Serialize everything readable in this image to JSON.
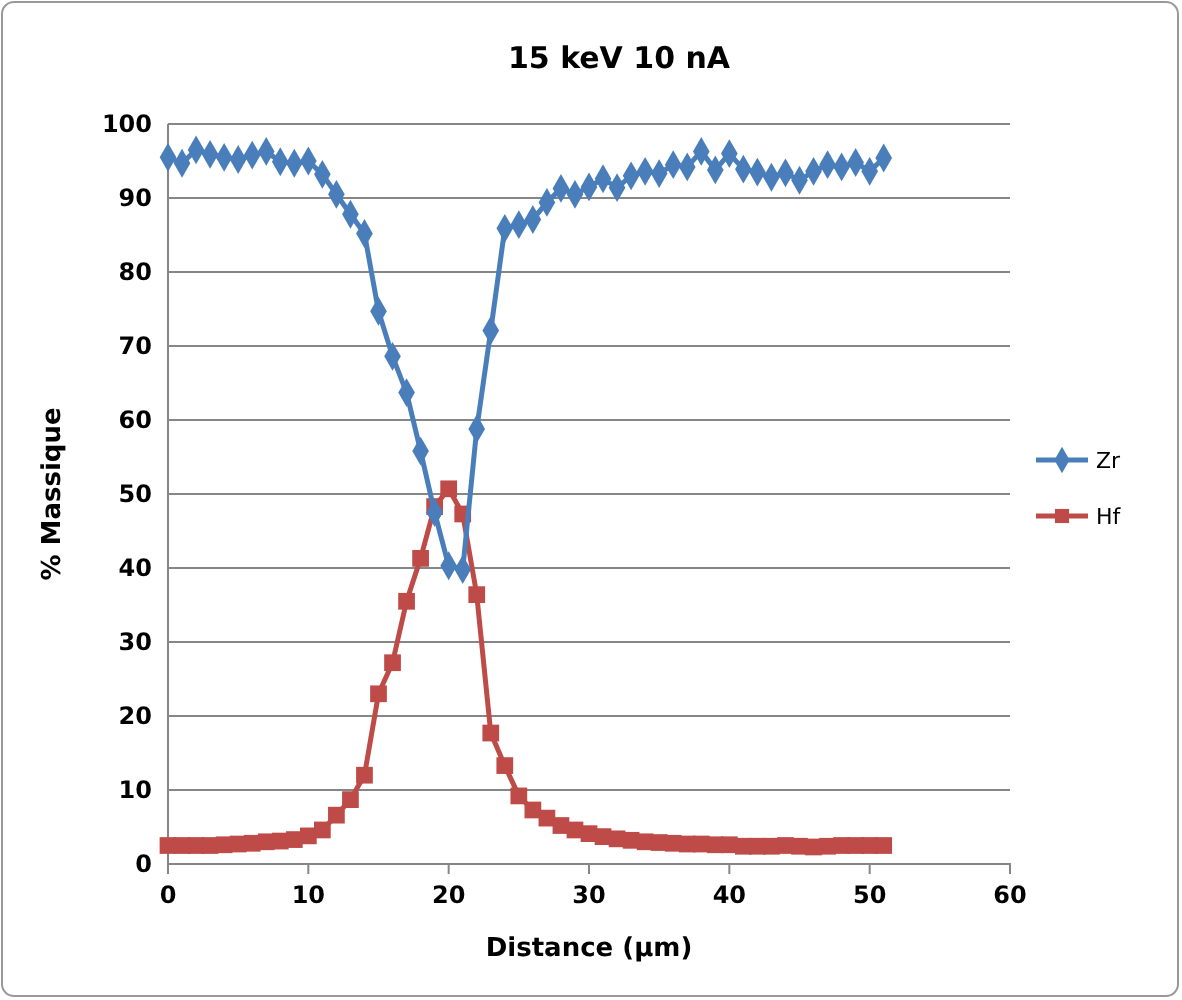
{
  "chart_data": {
    "type": "line",
    "title": "15 keV 10 nA",
    "xlabel": "Distance (µm)",
    "ylabel": "% Massique",
    "x": [
      0,
      1,
      2,
      3,
      4,
      5,
      6,
      7,
      8,
      9,
      10,
      11,
      12,
      13,
      14,
      15,
      16,
      17,
      18,
      19,
      20,
      21,
      22,
      23,
      24,
      25,
      26,
      27,
      28,
      29,
      30,
      31,
      32,
      33,
      34,
      35,
      36,
      37,
      38,
      39,
      40,
      41,
      42,
      43,
      44,
      45,
      46,
      47,
      48,
      49,
      50,
      51
    ],
    "series": [
      {
        "name": "Zr",
        "color": "#4a7ebb",
        "marker": "diamond",
        "values": [
          95.5,
          94.7,
          96.5,
          95.9,
          95.5,
          95.2,
          95.8,
          96.3,
          94.9,
          94.7,
          95,
          93.2,
          90.5,
          87.8,
          85.2,
          74.7,
          68.6,
          63.7,
          55.8,
          47.5,
          40.3,
          39.8,
          58.8,
          72.1,
          85.9,
          86.4,
          87.1,
          89.4,
          91.3,
          90.5,
          91.5,
          92.6,
          91.4,
          93,
          93.6,
          93.3,
          94.5,
          94.2,
          96.3,
          93.8,
          96,
          93.9,
          93.5,
          92.8,
          93.4,
          92.4,
          93.6,
          94.5,
          94.2,
          94.8,
          93.6,
          95.4
        ]
      },
      {
        "name": "Hf",
        "color": "#be4b48",
        "marker": "square",
        "values": [
          2.5,
          2.5,
          2.5,
          2.5,
          2.6,
          2.7,
          2.8,
          3,
          3.1,
          3.3,
          3.8,
          4.6,
          6.6,
          8.7,
          12,
          23,
          27.2,
          35.5,
          41.3,
          48.3,
          50.7,
          47.3,
          36.4,
          17.7,
          13.3,
          9.2,
          7.3,
          6.2,
          5.2,
          4.6,
          4.1,
          3.7,
          3.4,
          3.2,
          3,
          2.9,
          2.8,
          2.7,
          2.7,
          2.6,
          2.6,
          2.4,
          2.4,
          2.4,
          2.5,
          2.4,
          2.3,
          2.4,
          2.5,
          2.5,
          2.5,
          2.5
        ]
      }
    ],
    "xlim": [
      0,
      60
    ],
    "xticks": [
      0,
      10,
      20,
      30,
      40,
      50,
      60
    ],
    "ylim": [
      0,
      100
    ],
    "yticks": [
      0,
      10,
      20,
      30,
      40,
      50,
      60,
      70,
      80,
      90,
      100
    ],
    "grid": "y",
    "legend": "right",
    "line_style": "solid"
  }
}
